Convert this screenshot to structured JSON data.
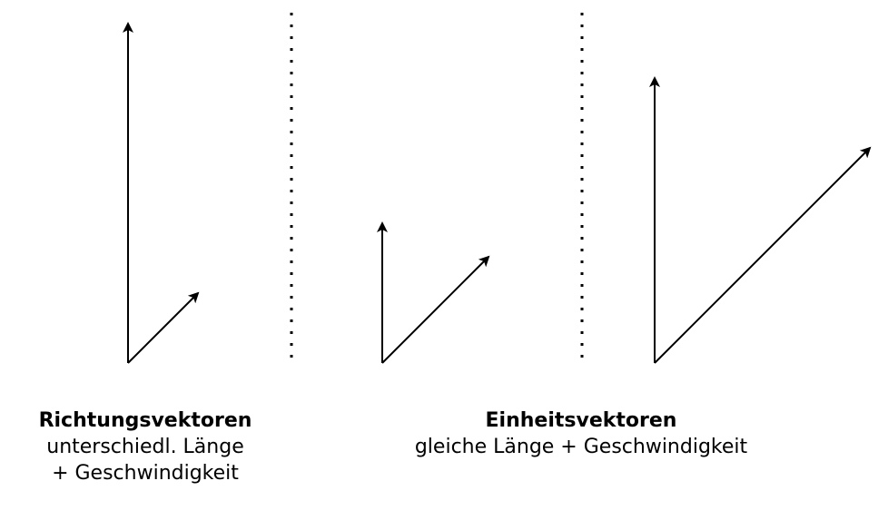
{
  "left_group": {
    "title": "Richtungsvektoren",
    "line1": "unterschiedl. Länge",
    "line2": "+ Geschwindigkeit"
  },
  "right_group": {
    "title": "Einheitsvektoren",
    "line1": "gleiche Länge + Geschwindigkeit"
  },
  "colors": {
    "stroke": "#000000",
    "background": "#ffffff"
  }
}
